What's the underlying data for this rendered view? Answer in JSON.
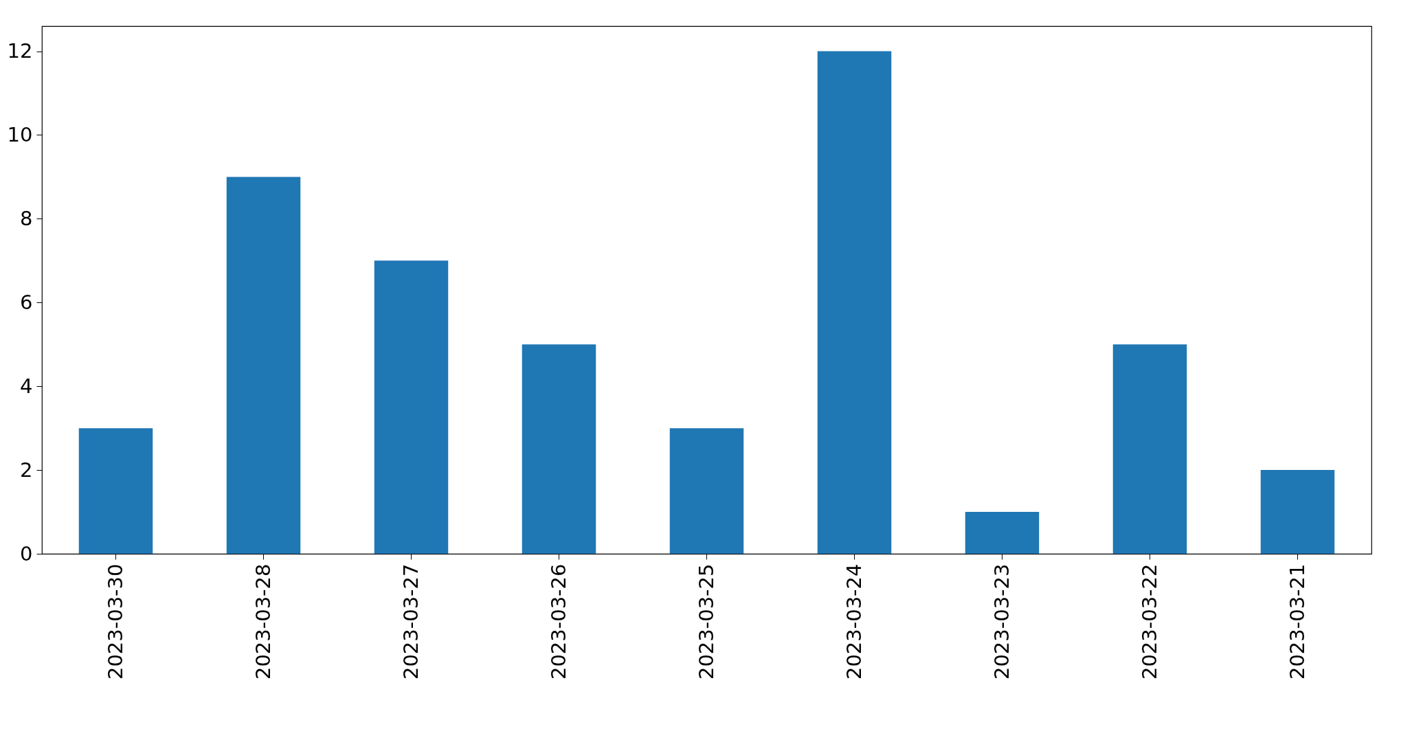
{
  "chart_data": {
    "type": "bar",
    "categories": [
      "2023-03-30",
      "2023-03-28",
      "2023-03-27",
      "2023-03-26",
      "2023-03-25",
      "2023-03-24",
      "2023-03-23",
      "2023-03-22",
      "2023-03-21"
    ],
    "values": [
      3,
      9,
      7,
      5,
      3,
      12,
      1,
      5,
      2
    ],
    "color": "#1f77b4",
    "ylim": [
      0,
      12.6
    ],
    "yticks": [
      0,
      2,
      4,
      6,
      8,
      10,
      12
    ],
    "grid": false
  }
}
